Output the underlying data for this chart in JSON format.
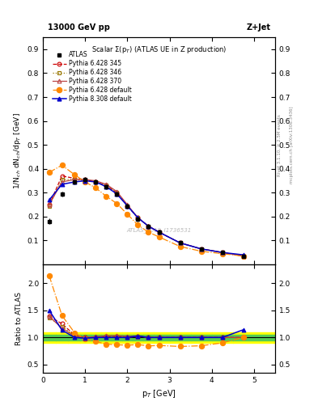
{
  "title_top": "13000 GeV pp",
  "title_right": "Z+Jet",
  "plot_title": "Scalar Σ(p$_T$) (ATLAS UE in Z production)",
  "watermark": "ATLAS_2019_I1736531",
  "right_label": "mcplots.cern.ch [arXiv:1306.3436]",
  "right_label2": "Rivet 3.1.10, ≥ 2.5M events",
  "ylabel_main": "1/N$_{ch}$ dN$_{ch}$/dp$_T$ [GeV]",
  "ylabel_ratio": "Ratio to ATLAS",
  "xlabel": "p$_T$ [GeV]",
  "xlim": [
    0,
    5.5
  ],
  "ylim_main": [
    0.0,
    0.95
  ],
  "ylim_ratio": [
    0.35,
    2.35
  ],
  "yticks_main": [
    0.1,
    0.2,
    0.3,
    0.4,
    0.5,
    0.6,
    0.7,
    0.8,
    0.9
  ],
  "yticks_ratio": [
    0.5,
    1.0,
    1.5,
    2.0
  ],
  "xpts": [
    0.15,
    0.45,
    0.75,
    1.0,
    1.25,
    1.5,
    1.75,
    2.0,
    2.25,
    2.5,
    2.75,
    3.25,
    3.75,
    4.25,
    4.75
  ],
  "atlas_y": [
    0.18,
    0.295,
    0.345,
    0.355,
    0.345,
    0.325,
    0.295,
    0.245,
    0.19,
    0.16,
    0.135,
    0.09,
    0.065,
    0.05,
    0.035
  ],
  "atlas_yerr": [
    0.012,
    0.01,
    0.01,
    0.01,
    0.01,
    0.01,
    0.01,
    0.01,
    0.01,
    0.01,
    0.01,
    0.005,
    0.005,
    0.005,
    0.005
  ],
  "py6_345_y": [
    0.25,
    0.37,
    0.36,
    0.355,
    0.345,
    0.33,
    0.3,
    0.245,
    0.195,
    0.16,
    0.135,
    0.09,
    0.065,
    0.05,
    0.035
  ],
  "py6_346_y": [
    0.245,
    0.355,
    0.355,
    0.35,
    0.345,
    0.33,
    0.3,
    0.245,
    0.195,
    0.16,
    0.135,
    0.09,
    0.065,
    0.05,
    0.035
  ],
  "py6_370_y": [
    0.25,
    0.345,
    0.355,
    0.355,
    0.35,
    0.335,
    0.305,
    0.25,
    0.195,
    0.16,
    0.135,
    0.09,
    0.065,
    0.05,
    0.035
  ],
  "py6_def_y": [
    0.385,
    0.415,
    0.375,
    0.345,
    0.32,
    0.285,
    0.255,
    0.21,
    0.165,
    0.135,
    0.115,
    0.075,
    0.055,
    0.045,
    0.035
  ],
  "py8_def_y": [
    0.27,
    0.335,
    0.345,
    0.35,
    0.345,
    0.325,
    0.295,
    0.245,
    0.195,
    0.16,
    0.135,
    0.09,
    0.065,
    0.05,
    0.04
  ],
  "green_band_inner": 0.05,
  "yellow_band_outer": 0.1,
  "color_atlas": "#000000",
  "color_py6_345": "#cc0000",
  "color_py6_346": "#997700",
  "color_py6_370": "#bb4444",
  "color_py6_def": "#ff8800",
  "color_py8_def": "#0000cc"
}
